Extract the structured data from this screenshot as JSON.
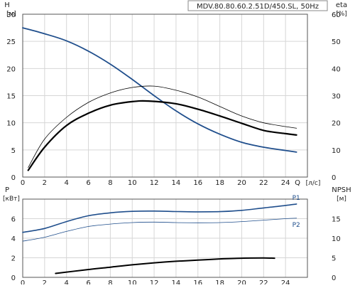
{
  "chart_data": [
    {
      "type": "line",
      "title": "MDV.80.80.60.2.51D/450.SL, 50Hz",
      "xlabel": "Q",
      "xunit": "[л/с]",
      "ylabel_left": "H",
      "yunit_left": "[м]",
      "ylabel_right": "eta",
      "yunit_right": "[%]",
      "xlim": [
        0,
        26
      ],
      "xticks": [
        0,
        2,
        4,
        6,
        8,
        10,
        12,
        14,
        16,
        18,
        20,
        22,
        24
      ],
      "ylim_left": [
        0,
        30
      ],
      "yticks_left": [
        0,
        5,
        10,
        15,
        20,
        25,
        30
      ],
      "ylim_right": [
        0,
        60
      ],
      "yticks_right": [
        0,
        10,
        20,
        30,
        40,
        50,
        60
      ],
      "grid": true,
      "series": [
        {
          "axis": "left",
          "color": "#1f4e8c",
          "width": 1.8,
          "x": [
            0,
            2,
            4,
            6,
            8,
            10,
            12,
            14,
            16,
            18,
            20,
            22,
            24,
            25
          ],
          "y": [
            27.5,
            26.4,
            25.1,
            23.2,
            20.8,
            18.0,
            15.0,
            12.2,
            9.8,
            7.9,
            6.4,
            5.5,
            4.9,
            4.6
          ]
        },
        {
          "axis": "right",
          "color": "#000000",
          "width": 2.2,
          "x": [
            0.5,
            2,
            4,
            6,
            8,
            10,
            11.5,
            14,
            16,
            18,
            20,
            22,
            24,
            25
          ],
          "y": [
            2.5,
            11,
            19,
            23.5,
            26.5,
            27.8,
            28,
            27,
            25,
            22.5,
            19.8,
            17.2,
            16,
            15.5
          ]
        },
        {
          "axis": "right",
          "color": "#000000",
          "width": 0.8,
          "x": [
            0.5,
            2,
            4,
            6,
            8,
            10,
            12,
            14,
            16,
            18,
            20,
            22,
            24,
            25
          ],
          "y": [
            3.5,
            14,
            22,
            27.5,
            31,
            33,
            33.5,
            32,
            29.5,
            26,
            22.5,
            20,
            18.6,
            18
          ]
        }
      ]
    },
    {
      "type": "line",
      "xlim": [
        0,
        26
      ],
      "xticks": [
        0,
        2,
        4,
        6,
        8,
        10,
        12,
        14,
        16,
        18,
        20,
        22,
        24
      ],
      "ylabel_left": "P",
      "yunit_left": "[кВт]",
      "ylabel_right": "NPSH",
      "yunit_right": "[м]",
      "ylim_left": [
        0,
        8
      ],
      "yticks_left": [
        0,
        2,
        4,
        6
      ],
      "ylim_right": [
        0,
        20
      ],
      "yticks_right": [
        0,
        5,
        10,
        15
      ],
      "grid": true,
      "series": [
        {
          "name": "P1",
          "axis": "left",
          "color": "#1f4e8c",
          "width": 1.6,
          "x": [
            0,
            2,
            4,
            6,
            8,
            10,
            12,
            14,
            16,
            18,
            20,
            22,
            24,
            25
          ],
          "y": [
            4.6,
            5.0,
            5.7,
            6.3,
            6.6,
            6.75,
            6.78,
            6.73,
            6.7,
            6.72,
            6.85,
            7.1,
            7.35,
            7.5
          ]
        },
        {
          "name": "P2",
          "axis": "left",
          "color": "#1f4e8c",
          "width": 0.8,
          "x": [
            0,
            2,
            4,
            6,
            8,
            10,
            12,
            14,
            16,
            18,
            20,
            22,
            24,
            25
          ],
          "y": [
            3.7,
            4.1,
            4.7,
            5.2,
            5.45,
            5.6,
            5.65,
            5.6,
            5.58,
            5.6,
            5.7,
            5.85,
            6.0,
            6.05
          ]
        },
        {
          "axis": "right",
          "color": "#000000",
          "width": 2.0,
          "x": [
            3,
            6,
            8,
            10,
            12,
            14,
            16,
            18,
            20,
            22,
            23
          ],
          "y": [
            1.0,
            2.0,
            2.6,
            3.2,
            3.7,
            4.1,
            4.4,
            4.7,
            4.9,
            4.95,
            4.9
          ]
        }
      ]
    }
  ]
}
